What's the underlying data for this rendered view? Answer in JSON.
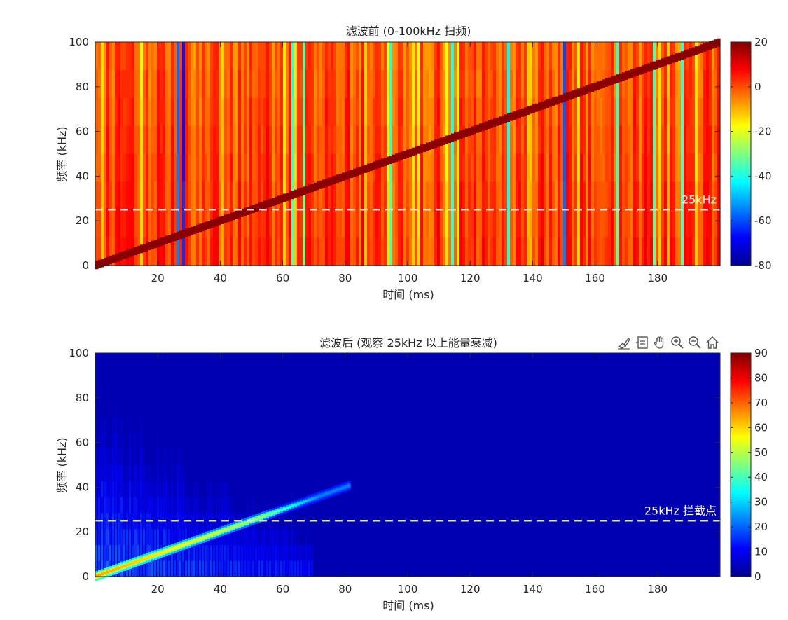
{
  "chart_data": [
    {
      "type": "heatmap",
      "title": "滤波前 (0-100kHz 扫频)",
      "xlabel": "时间 (ms)",
      "ylabel": "频率 (kHz)",
      "xlim": [
        0,
        200
      ],
      "ylim": [
        0,
        100
      ],
      "xticks": [
        20,
        40,
        60,
        80,
        100,
        120,
        140,
        160,
        180
      ],
      "xtick_labels": [
        "20",
        "40",
        "60",
        "80",
        "100",
        "120",
        "140",
        "160",
        "180"
      ],
      "yticks": [
        0,
        20,
        40,
        60,
        80,
        100
      ],
      "ytick_labels": [
        "0",
        "20",
        "40",
        "60",
        "80",
        "100"
      ],
      "colormap": "jet",
      "clim": [
        -80,
        20
      ],
      "colorbar_ticks": [
        20,
        0,
        -20,
        -40,
        -60,
        -80
      ],
      "colorbar_tick_labels": [
        "20",
        "0",
        "-20",
        "-40",
        "-60",
        "-80"
      ],
      "chirp": {
        "start_khz": 0,
        "end_khz": 100,
        "duration_ms": 200
      },
      "cutoff_line": {
        "value_khz": 25,
        "label": "25kHz"
      }
    },
    {
      "type": "heatmap",
      "title": "滤波后 (观察 25kHz 以上能量衰减)",
      "xlabel": "时间 (ms)",
      "ylabel": "频率 (kHz)",
      "xlim": [
        0,
        200
      ],
      "ylim": [
        0,
        100
      ],
      "xticks": [
        20,
        40,
        60,
        80,
        100,
        120,
        140,
        160,
        180
      ],
      "xtick_labels": [
        "20",
        "40",
        "60",
        "80",
        "100",
        "120",
        "140",
        "160",
        "180"
      ],
      "yticks": [
        0,
        20,
        40,
        60,
        80,
        100
      ],
      "ytick_labels": [
        "0",
        "20",
        "40",
        "60",
        "80",
        "100"
      ],
      "colormap": "jet",
      "clim": [
        0,
        90
      ],
      "colorbar_ticks": [
        90,
        80,
        70,
        60,
        50,
        40,
        30,
        20,
        10,
        0
      ],
      "colorbar_tick_labels": [
        "90",
        "80",
        "70",
        "60",
        "50",
        "40",
        "30",
        "20",
        "10",
        "0"
      ],
      "chirp": {
        "start_khz": 0,
        "end_khz": 40,
        "duration_ms": 80
      },
      "cutoff_line": {
        "value_khz": 25,
        "label": "25kHz 拦截点"
      }
    }
  ],
  "toolbar": {
    "icons": [
      "brush-icon",
      "datatip-icon",
      "pan-icon",
      "zoom-in-icon",
      "zoom-out-icon",
      "home-icon"
    ]
  }
}
